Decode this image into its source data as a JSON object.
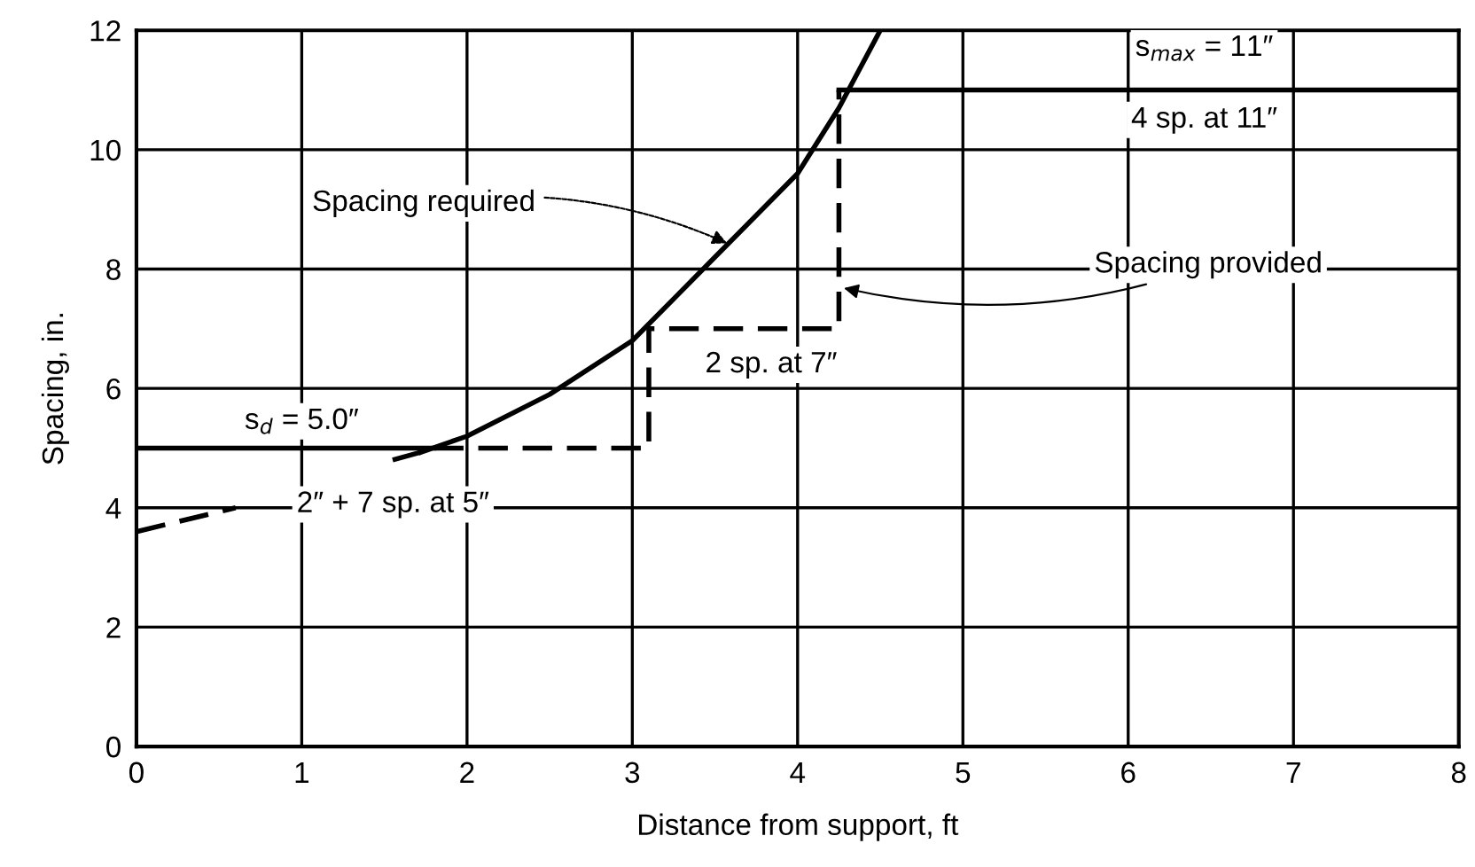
{
  "chart_data": {
    "type": "line",
    "xlabel": "Distance from support, ft",
    "ylabel": "Spacing, in.",
    "xlim": [
      0,
      8
    ],
    "ylim": [
      0,
      12
    ],
    "xticks": [
      0,
      1,
      2,
      3,
      4,
      5,
      6,
      7,
      8
    ],
    "yticks": [
      0,
      2,
      4,
      6,
      8,
      10,
      12
    ],
    "grid": true,
    "marker": "none",
    "series": [
      {
        "color": "#000000",
        "line_style": "dashed",
        "x": [
          0,
          0.3,
          0.6,
          1.0,
          1.55,
          1.72
        ],
        "values": [
          3.6,
          3.8,
          4.0,
          null,
          4.8,
          4.93
        ]
      },
      {
        "color": "#000000",
        "line_style": "solid",
        "x": [
          1.72,
          2.0,
          2.5,
          3.0,
          3.5,
          4.0,
          4.25,
          4.5
        ],
        "values": [
          4.93,
          5.2,
          5.9,
          6.8,
          8.2,
          9.6,
          10.7,
          12
        ]
      },
      {
        "color": "#000000",
        "line_style": "solid",
        "x": [
          0,
          1.8
        ],
        "values": [
          5,
          5
        ]
      },
      {
        "color": "#000000",
        "line_style": "dashed",
        "x": [
          1.8,
          3.1,
          3.1,
          4.25,
          4.25
        ],
        "values": [
          5,
          5,
          7,
          7,
          11
        ]
      },
      {
        "color": "#000000",
        "line_style": "solid",
        "x": [
          4.25,
          8
        ],
        "values": [
          11,
          11
        ]
      }
    ],
    "annotations": [
      {
        "text": "Spacing required",
        "x": 3.6,
        "y": 8.4
      },
      {
        "text": "Spacing provided",
        "x": 4.25,
        "y": 7.7
      },
      "s$_{d}$ = 5.0″",
      "2″ + 7 sp. at 5″",
      "2 sp. at 7″",
      "s$_{max}$ = 11″",
      "4 sp. at 11″"
    ]
  }
}
